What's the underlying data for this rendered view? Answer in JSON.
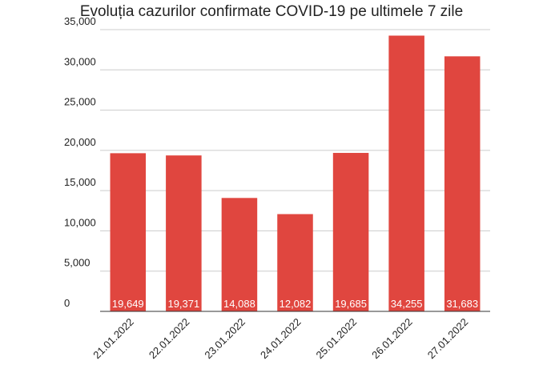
{
  "chart_data": {
    "type": "bar",
    "title": "Evoluția cazurilor confirmate COVID-19 pe ultimele 7 zile",
    "categories": [
      "21.01.2022",
      "22.01.2022",
      "23.01.2022",
      "24.01.2022",
      "25.01.2022",
      "26.01.2022",
      "27.01.2022"
    ],
    "values": [
      19649,
      19371,
      14088,
      12082,
      19685,
      34255,
      31683
    ],
    "value_labels": [
      "19,649",
      "19,371",
      "14,088",
      "12,082",
      "19,685",
      "34,255",
      "31,683"
    ],
    "color": "#e0463f",
    "ylim": [
      0,
      35000
    ],
    "yticks": [
      0,
      {
        "value": 5000,
        "label": "5,000"
      },
      {
        "value": 10000,
        "label": "10,000"
      },
      {
        "value": 15000,
        "label": "15,000"
      },
      {
        "value": 20000,
        "label": "20,000"
      },
      {
        "value": 25000,
        "label": "25,000"
      },
      {
        "value": 30000,
        "label": "30,000"
      },
      {
        "value": 35000,
        "label": "35,000"
      }
    ],
    "grid": true
  }
}
